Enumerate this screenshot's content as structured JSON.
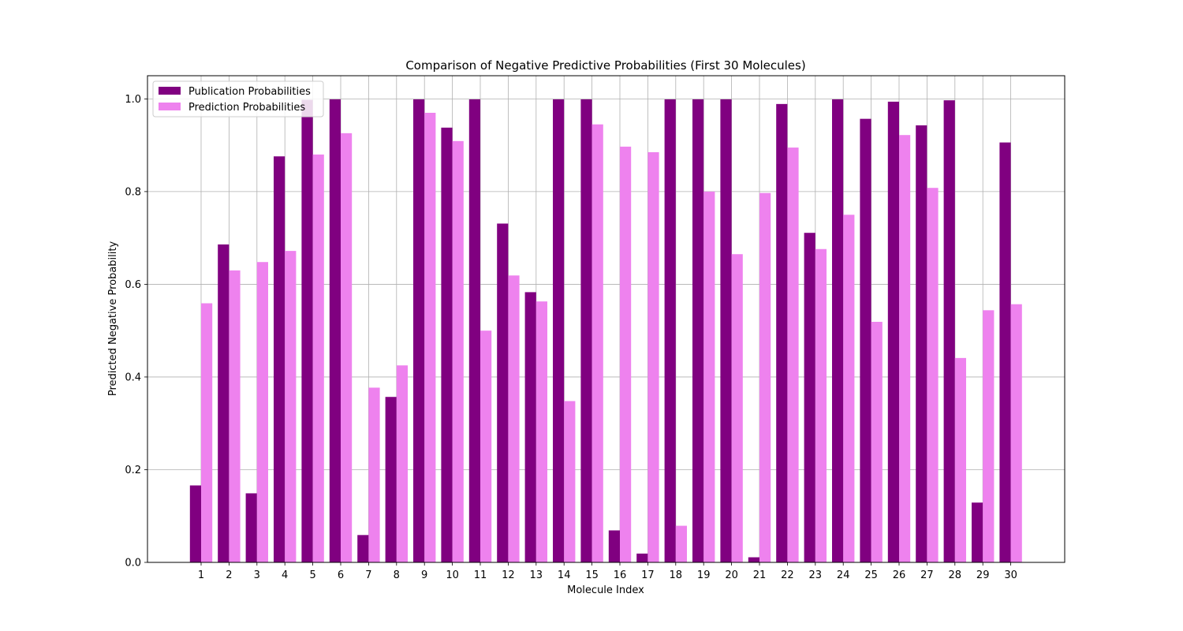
{
  "chart_data": {
    "type": "bar",
    "title": "Comparison of Negative Predictive Probabilities (First 30 Molecules)",
    "xlabel": "Molecule Index",
    "ylabel": "Predicted Negative Probability",
    "categories": [
      "1",
      "2",
      "3",
      "4",
      "5",
      "6",
      "7",
      "8",
      "9",
      "10",
      "11",
      "12",
      "13",
      "14",
      "15",
      "16",
      "17",
      "18",
      "19",
      "20",
      "21",
      "22",
      "23",
      "24",
      "25",
      "26",
      "27",
      "28",
      "29",
      "30"
    ],
    "ylim": [
      0,
      1.05
    ],
    "yticks": [
      "0.0",
      "0.2",
      "0.4",
      "0.6",
      "0.8",
      "1.0"
    ],
    "ytick_values": [
      0,
      0.2,
      0.4,
      0.6,
      0.8,
      1.0
    ],
    "grid": true,
    "legend_position": "top-left",
    "series": [
      {
        "name": "Publication Probabilities",
        "color": "#800080",
        "values": [
          0.166,
          0.686,
          0.149,
          0.876,
          0.998,
          0.999,
          0.059,
          0.357,
          0.999,
          0.938,
          0.999,
          0.731,
          0.583,
          0.999,
          0.999,
          0.069,
          0.019,
          0.999,
          0.999,
          0.999,
          0.011,
          0.989,
          0.711,
          0.999,
          0.957,
          0.994,
          0.943,
          0.997,
          0.129,
          0.906
        ]
      },
      {
        "name": "Prediction Probabilities",
        "color": "#ee82ee",
        "values": [
          0.559,
          0.63,
          0.648,
          0.672,
          0.88,
          0.926,
          0.377,
          0.425,
          0.97,
          0.909,
          0.5,
          0.619,
          0.563,
          0.348,
          0.945,
          0.897,
          0.885,
          0.079,
          0.8,
          0.665,
          0.797,
          0.895,
          0.676,
          0.75,
          0.519,
          0.922,
          0.808,
          0.441,
          0.544,
          0.557
        ]
      }
    ]
  }
}
